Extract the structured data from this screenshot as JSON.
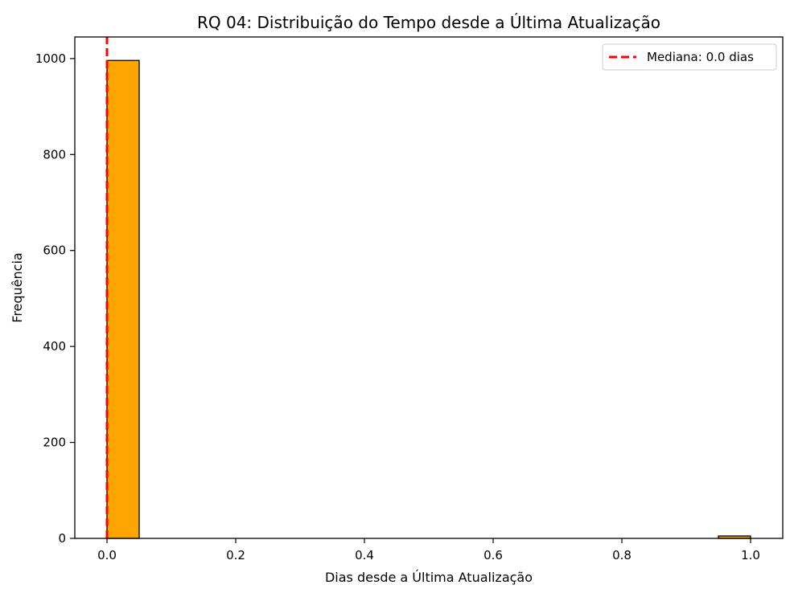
{
  "chart_data": {
    "type": "bar",
    "title": "RQ 04: Distribuição do Tempo desde a Última Atualização",
    "xlabel": "Dias desde a Última Atualização",
    "ylabel": "Frequência",
    "xlim": [
      -0.05,
      1.05
    ],
    "ylim": [
      0,
      1045
    ],
    "x_ticks": [
      0.0,
      0.2,
      0.4,
      0.6,
      0.8,
      1.0
    ],
    "x_tick_labels": [
      "0.0",
      "0.2",
      "0.4",
      "0.6",
      "0.8",
      "1.0"
    ],
    "y_ticks": [
      0,
      200,
      400,
      600,
      800,
      1000
    ],
    "y_tick_labels": [
      "0",
      "200",
      "400",
      "600",
      "800",
      "1000"
    ],
    "bins": [
      {
        "start": 0.0,
        "end": 0.05,
        "value": 996
      },
      {
        "start": 0.05,
        "end": 0.1,
        "value": 0
      },
      {
        "start": 0.1,
        "end": 0.15,
        "value": 0
      },
      {
        "start": 0.15,
        "end": 0.2,
        "value": 0
      },
      {
        "start": 0.2,
        "end": 0.25,
        "value": 0
      },
      {
        "start": 0.25,
        "end": 0.3,
        "value": 0
      },
      {
        "start": 0.3,
        "end": 0.35,
        "value": 0
      },
      {
        "start": 0.35,
        "end": 0.4,
        "value": 0
      },
      {
        "start": 0.4,
        "end": 0.45,
        "value": 0
      },
      {
        "start": 0.45,
        "end": 0.5,
        "value": 0
      },
      {
        "start": 0.5,
        "end": 0.55,
        "value": 0
      },
      {
        "start": 0.55,
        "end": 0.6,
        "value": 0
      },
      {
        "start": 0.6,
        "end": 0.65,
        "value": 0
      },
      {
        "start": 0.65,
        "end": 0.7,
        "value": 0
      },
      {
        "start": 0.7,
        "end": 0.75,
        "value": 0
      },
      {
        "start": 0.75,
        "end": 0.8,
        "value": 0
      },
      {
        "start": 0.8,
        "end": 0.85,
        "value": 0
      },
      {
        "start": 0.85,
        "end": 0.9,
        "value": 0
      },
      {
        "start": 0.9,
        "end": 0.95,
        "value": 0
      },
      {
        "start": 0.95,
        "end": 1.0,
        "value": 5
      }
    ],
    "bar_color": "#ffa500",
    "bar_edge_color": "#000000",
    "median": {
      "value": 0.0,
      "label": "Mediana: 0.0 dias",
      "color": "#ff0000",
      "style": "dashed"
    },
    "legend": {
      "placement": "top-right",
      "entries": [
        "Mediana: 0.0 dias"
      ]
    },
    "grid": false
  }
}
